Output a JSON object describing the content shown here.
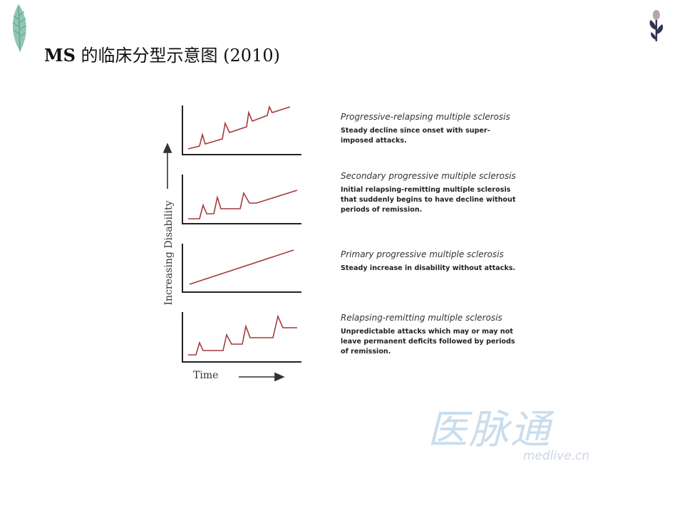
{
  "slide": {
    "title_bold": "MS",
    "title_rest": " 的临床分型示意图 (2010)"
  },
  "figure": {
    "ylabel": "Increasing Disability",
    "xlabel": "Time",
    "panels": [
      {
        "title": "Progressive-relapsing multiple sclerosis",
        "text": "Steady decline since onset with super-imposed attacks."
      },
      {
        "title": "Secondary progressive multiple sclerosis",
        "text": "Initial relapsing-remitting multiple sclerosis that suddenly begins to have decline without periods of remission."
      },
      {
        "title": "Primary progressive multiple sclerosis",
        "text": "Steady increase in disability without attacks."
      },
      {
        "title": "Relapsing-remitting multiple sclerosis",
        "text": "Unpredictable attacks which may or may not leave permanent deficits followed by periods of remission."
      }
    ],
    "line_color": "#a33a3a"
  },
  "watermark": {
    "cn": "医脉通",
    "en": "medlive.cn"
  },
  "icons": {
    "left": "leaf-icon",
    "right": "plant-sprout-icon"
  }
}
